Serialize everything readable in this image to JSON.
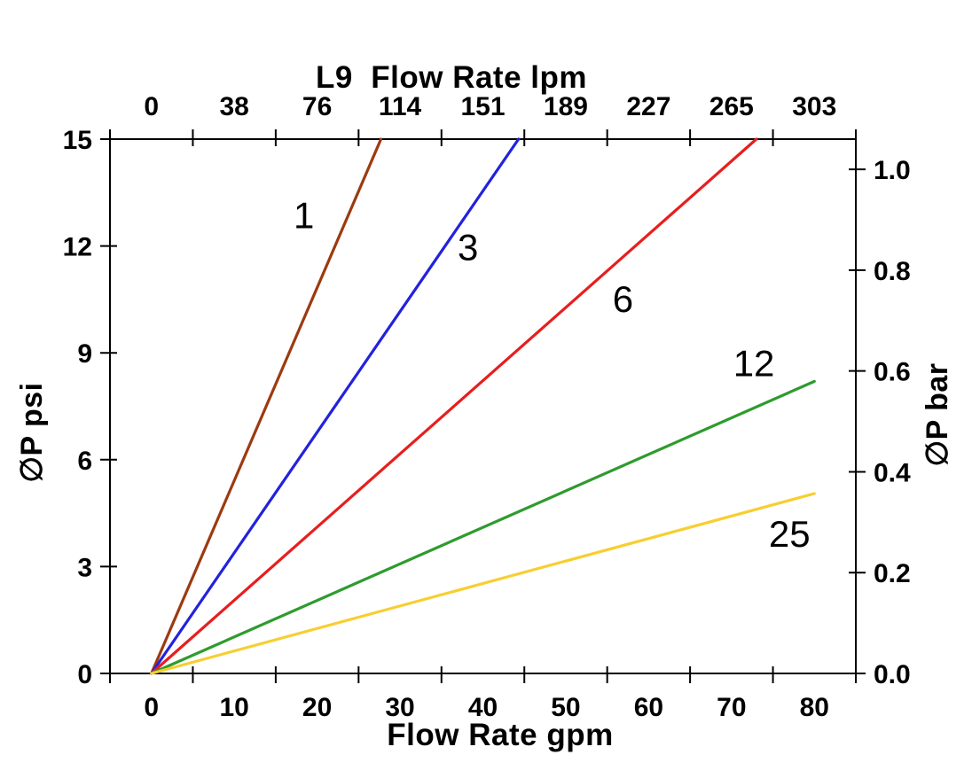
{
  "chart_data": {
    "type": "line",
    "title": "L9  Flow Rate lpm",
    "background": "#ffffff",
    "axis_color": "#000000",
    "grid": false,
    "legend": "inline-labels-on-lines",
    "axes": {
      "top": {
        "label": "L9  Flow Rate lpm",
        "unit": "lpm",
        "tick_labels": [
          "0",
          "38",
          "76",
          "114",
          "151",
          "189",
          "227",
          "265",
          "303"
        ],
        "labels_between_ticks": true
      },
      "bottom": {
        "label": "Flow Rate gpm",
        "unit": "gpm",
        "tick_labels": [
          "0",
          "10",
          "20",
          "30",
          "40",
          "50",
          "60",
          "70",
          "80"
        ],
        "labels_between_ticks": true,
        "range": [
          0,
          80
        ]
      },
      "left": {
        "label": "∅P psi",
        "unit": "psi",
        "ticks": [
          0,
          3,
          6,
          9,
          12,
          15
        ],
        "tick_labels": [
          "0",
          "3",
          "6",
          "9",
          "12",
          "15"
        ],
        "range": [
          0,
          15
        ]
      },
      "right": {
        "label": "∅P bar",
        "unit": "bar",
        "tick_values": [
          0,
          0.2,
          0.4,
          0.6,
          0.8,
          1.0
        ],
        "tick_labels": [
          "0.0",
          "0.2",
          "0.4",
          "0.6",
          "0.8",
          "1.0"
        ],
        "range": [
          0,
          1.06
        ]
      }
    },
    "series": [
      {
        "name": "1",
        "color": "#9C3A10",
        "approx_psi_per_gpm": 0.54,
        "points_gpm_psi": [
          [
            0,
            0
          ],
          [
            27.7,
            15
          ]
        ]
      },
      {
        "name": "3",
        "color": "#2222DD",
        "approx_psi_per_gpm": 0.34,
        "points_gpm_psi": [
          [
            0,
            0
          ],
          [
            44.3,
            15
          ]
        ]
      },
      {
        "name": "6",
        "color": "#E81E1E",
        "approx_psi_per_gpm": 0.205,
        "points_gpm_psi": [
          [
            0,
            0
          ],
          [
            73.0,
            15
          ]
        ]
      },
      {
        "name": "12",
        "color": "#2E9B2E",
        "approx_psi_per_gpm": 0.102,
        "points_gpm_psi": [
          [
            0,
            0
          ],
          [
            80.0,
            8.2
          ]
        ]
      },
      {
        "name": "25",
        "color": "#F8CE30",
        "approx_psi_per_gpm": 0.063,
        "points_gpm_psi": [
          [
            0,
            0
          ],
          [
            80.0,
            5.05
          ]
        ]
      }
    ],
    "annotations": [
      {
        "label": "1",
        "gpm": 18.4,
        "psi": 12.85
      },
      {
        "label": "3",
        "gpm": 38.2,
        "psi": 11.95
      },
      {
        "label": "6",
        "gpm": 56.9,
        "psi": 10.5
      },
      {
        "label": "12",
        "gpm": 72.7,
        "psi": 8.7
      },
      {
        "label": "25",
        "gpm": 77.0,
        "psi": 3.9
      }
    ]
  }
}
